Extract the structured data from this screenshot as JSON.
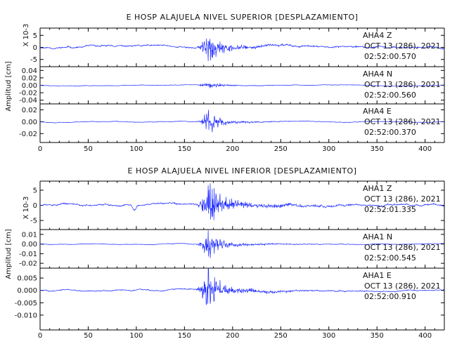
{
  "chart_data": [
    {
      "type": "line",
      "title": "E HOSP ALAJUELA NIVEL SUPERIOR [DESPLAZAMIENTO]",
      "ylabel": "Amplitud [cm]",
      "xlim": [
        0,
        420
      ],
      "x_ticks": [
        "0",
        "50",
        "100",
        "150",
        "200",
        "250",
        "300",
        "350",
        "400"
      ],
      "panels": [
        {
          "station": "AHA4",
          "component": "Z",
          "date": "OCT 13 (286), 2021",
          "time": "02:52:00.570",
          "multiplier": "X 10-3",
          "ylim": [
            -8,
            8
          ],
          "y_ticks": [
            -5,
            0,
            5
          ],
          "y_tick_labels": [
            "-5",
            "0",
            "5"
          ],
          "signal": {
            "onset": 160,
            "peak_at": 175,
            "noise": 0.6,
            "peak": 7,
            "coda": 2,
            "decay": 45,
            "step_at": null,
            "step": 0,
            "seed": 11
          }
        },
        {
          "station": "AHA4",
          "component": "N",
          "date": "OCT 13 (286), 2021",
          "time": "02:52:00.560",
          "ylim": [
            -0.05,
            0.05
          ],
          "y_ticks": [
            -0.04,
            -0.02,
            0,
            0.02,
            0.04
          ],
          "y_tick_labels": [
            "-0.04",
            "-0.02",
            "0.00",
            "0.02",
            "0.04"
          ],
          "signal": {
            "onset": 160,
            "peak_at": 175,
            "noise": 0.001,
            "peak": 0.012,
            "coda": 0.003,
            "decay": 40,
            "step_at": null,
            "step": 0,
            "seed": 23
          }
        },
        {
          "station": "AHA4",
          "component": "E",
          "date": "OCT 13 (286), 2021",
          "time": "02:52:00.370",
          "ylim": [
            -0.035,
            0.03
          ],
          "y_ticks": [
            -0.02,
            0,
            0.02
          ],
          "y_tick_labels": [
            "-0.02",
            "0.00",
            "0.02"
          ],
          "signal": {
            "onset": 160,
            "peak_at": 175,
            "noise": 0.0008,
            "peak": 0.025,
            "coda": 0.004,
            "decay": 40,
            "step_at": null,
            "step": 0,
            "seed": 37
          }
        }
      ]
    },
    {
      "type": "line",
      "title": "E HOSP ALAJUELA NIVEL INFERIOR [DESPLAZAMIENTO]",
      "ylabel": "Amplitud [cm]",
      "xlim": [
        0,
        420
      ],
      "x_ticks": [
        "0",
        "50",
        "100",
        "150",
        "200",
        "250",
        "300",
        "350",
        "400"
      ],
      "panels": [
        {
          "station": "AHA1",
          "component": "Z",
          "date": "OCT 13 (286), 2021",
          "time": "02:52:01.335",
          "multiplier": "X 10-3",
          "ylim": [
            -8,
            8
          ],
          "y_ticks": [
            -5,
            0,
            5
          ],
          "y_tick_labels": [
            "-5",
            "0",
            "5"
          ],
          "signal": {
            "onset": 160,
            "peak_at": 175,
            "noise": 0.5,
            "peak": 7.5,
            "coda": 2.5,
            "decay": 55,
            "step_at": 95,
            "step": -1.5,
            "seed": 51
          }
        },
        {
          "station": "AHA1",
          "component": "N",
          "date": "OCT 13 (286), 2021",
          "time": "02:52:00.545",
          "ylim": [
            -0.025,
            0.015
          ],
          "y_ticks": [
            -0.02,
            -0.01,
            0,
            0.01
          ],
          "y_tick_labels": [
            "-0.02",
            "-0.01",
            "0.00",
            "0.01"
          ],
          "signal": {
            "onset": 160,
            "peak_at": 175,
            "noise": 0.0005,
            "peak": 0.018,
            "coda": 0.003,
            "decay": 50,
            "step_at": null,
            "step": 0,
            "seed": 67
          }
        },
        {
          "station": "AHA1",
          "component": "E",
          "date": "OCT 13 (286), 2021",
          "time": "02:52:00.910",
          "ylim": [
            -0.016,
            0.009
          ],
          "y_ticks": [
            -0.01,
            -0.005,
            0,
            0.005
          ],
          "y_tick_labels": [
            "-0.010",
            "-0.005",
            "0.000",
            "0.005"
          ],
          "signal": {
            "onset": 160,
            "peak_at": 175,
            "noise": 0.0004,
            "peak": 0.011,
            "coda": 0.002,
            "decay": 50,
            "step_at": null,
            "step": 0,
            "seed": 83
          }
        }
      ]
    }
  ],
  "colors": {
    "trace": "#1f2bff",
    "axis": "#000000",
    "text": "#111111"
  }
}
